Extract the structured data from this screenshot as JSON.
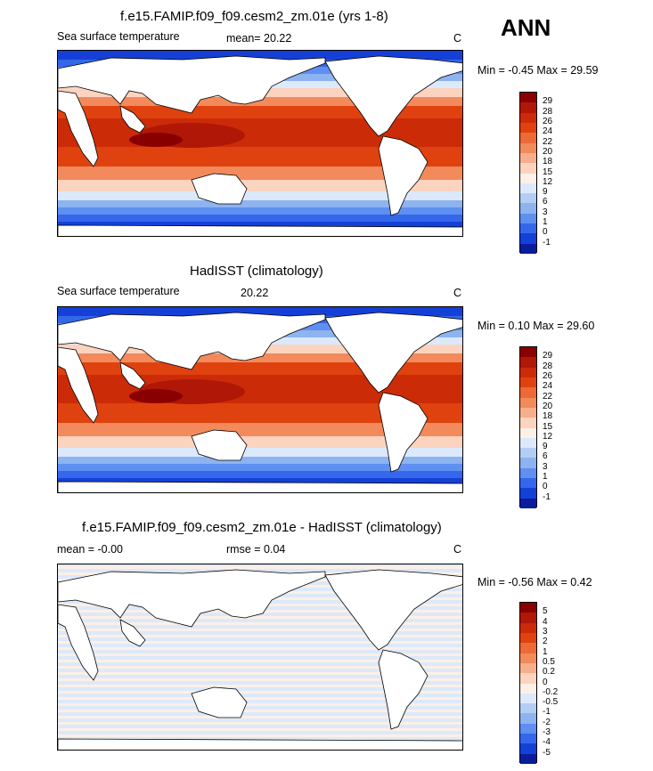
{
  "season_label": "ANN",
  "panels": [
    {
      "title": "f.e15.FAMIP.f09_f09.cesm2_zm.01e (yrs 1-8)",
      "left_label": "Sea surface temperature",
      "mean_text": "mean=  20.22",
      "units": "C",
      "minmax": "Min =  -0.45 Max =  29.59",
      "kind": "sst",
      "colorbar_labels": [
        "29",
        "28",
        "26",
        "24",
        "22",
        "20",
        "18",
        "15",
        "12",
        "9",
        "6",
        "3",
        "1",
        "0",
        "-1"
      ],
      "colorbar_colors": [
        "#8a0000",
        "#b01706",
        "#cc2b08",
        "#e0420f",
        "#ec6a35",
        "#f28a5c",
        "#f7ae8b",
        "#fbd3bf",
        "#fdf0e6",
        "#dce9fa",
        "#b3cef5",
        "#8db3f0",
        "#5f8ff0",
        "#3467ea",
        "#1540d8",
        "#0a1c9c"
      ]
    },
    {
      "title": "HadISST (climatology)",
      "left_label": "Sea surface temperature",
      "mean_text": "20.22",
      "units": "C",
      "minmax": "Min =  0.10 Max =  29.60",
      "kind": "sst",
      "colorbar_labels": [
        "29",
        "28",
        "26",
        "24",
        "22",
        "20",
        "18",
        "15",
        "12",
        "9",
        "6",
        "3",
        "1",
        "0",
        "-1"
      ],
      "colorbar_colors": [
        "#8a0000",
        "#b01706",
        "#cc2b08",
        "#e0420f",
        "#ec6a35",
        "#f28a5c",
        "#f7ae8b",
        "#fbd3bf",
        "#fdf0e6",
        "#dce9fa",
        "#b3cef5",
        "#8db3f0",
        "#5f8ff0",
        "#3467ea",
        "#1540d8",
        "#0a1c9c"
      ]
    },
    {
      "title": "f.e15.FAMIP.f09_f09.cesm2_zm.01e - HadISST (climatology)",
      "left_label": "mean =  -0.00",
      "mean_text": "rmse =   0.04",
      "units": "C",
      "minmax": "Min =  -0.56 Max =   0.42",
      "kind": "diff",
      "colorbar_labels": [
        "5",
        "4",
        "3",
        "2",
        "1",
        "0.5",
        "0.2",
        "0",
        "-0.2",
        "-0.5",
        "-1",
        "-2",
        "-3",
        "-4",
        "-5"
      ],
      "colorbar_colors": [
        "#8a0000",
        "#b01706",
        "#cc2b08",
        "#e0420f",
        "#ec6a35",
        "#f28a5c",
        "#f7ae8b",
        "#fbd3bf",
        "#fdf0e6",
        "#dce9fa",
        "#b3cef5",
        "#8db3f0",
        "#5f8ff0",
        "#3467ea",
        "#1540d8",
        "#0a1c9c"
      ]
    }
  ]
}
